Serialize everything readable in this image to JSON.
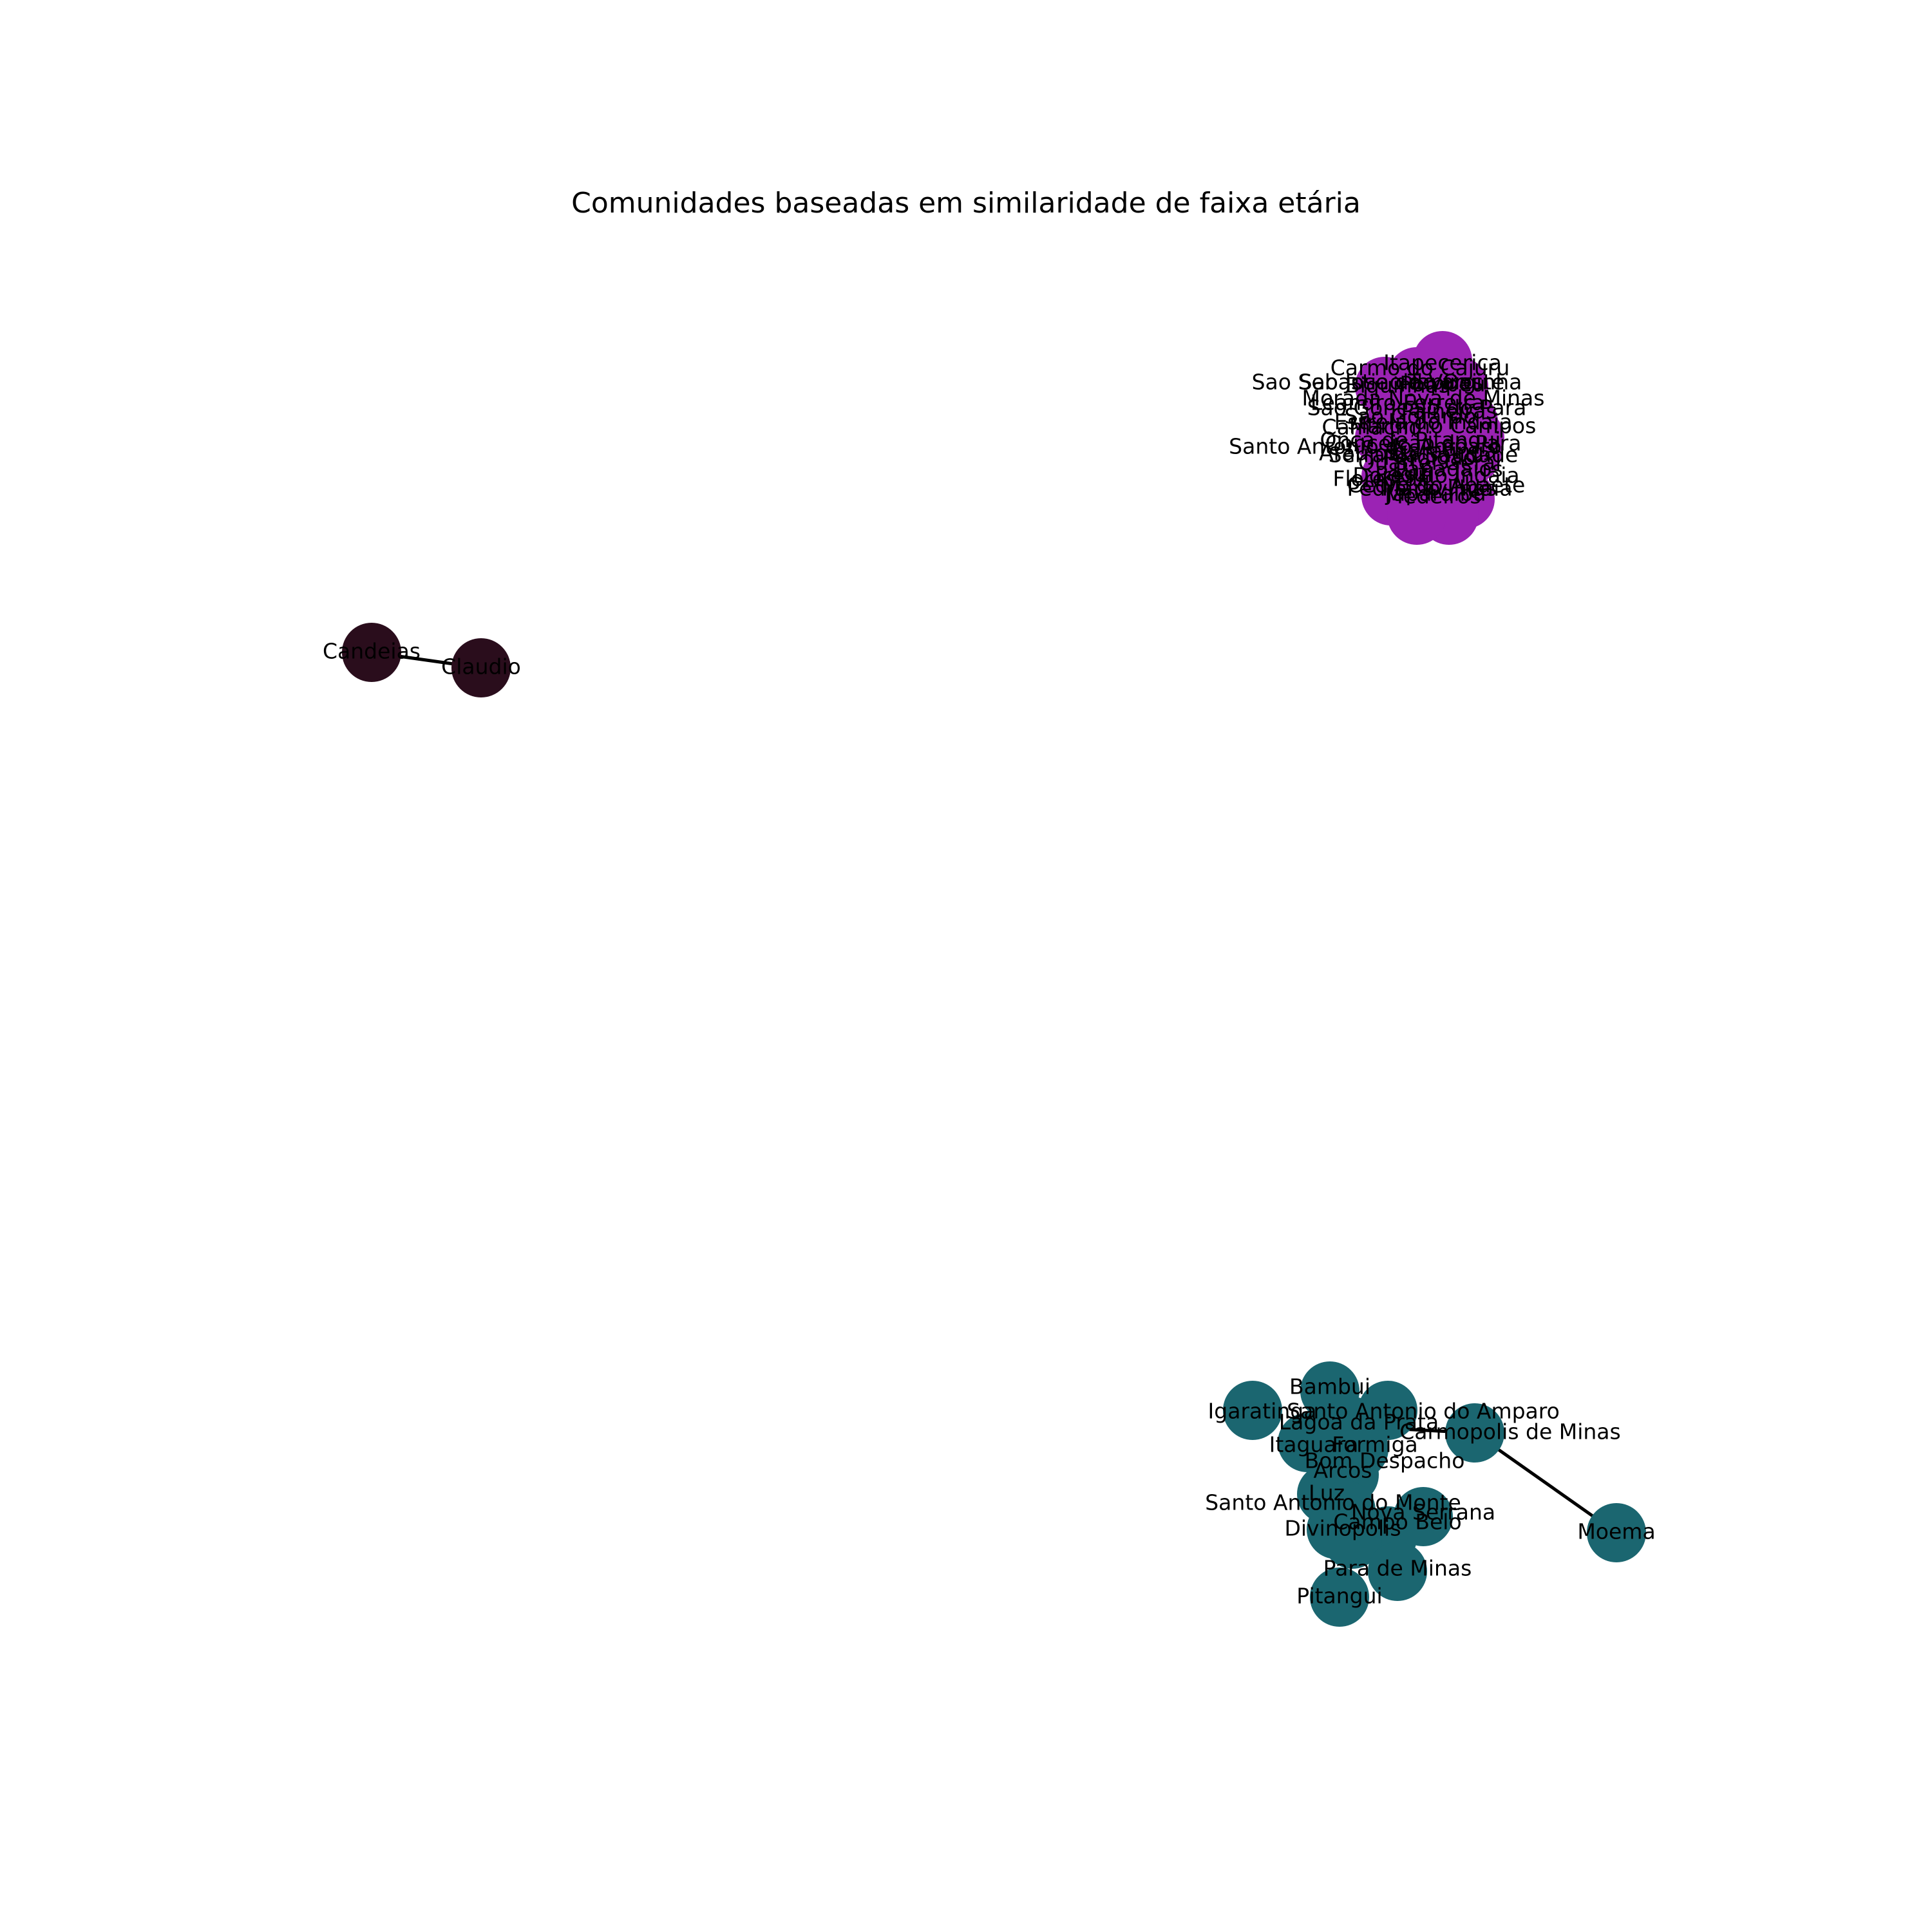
{
  "title": "Comunidades baseadas em similaridade de faixa etária",
  "colors": {
    "community_1": "#9b23b4",
    "community_2": "#2a0d1c",
    "community_3": "#1b6670",
    "edge": "#000000"
  },
  "nodes": {
    "community_1": [
      "Itapecerica",
      "Carmo do Cajuru",
      "Sao Sebastiao do Oeste",
      "Sao Jose da Varginha",
      "Pompeu",
      "Leandro Ferreira",
      "Sao Gonçalo do Para",
      "Sao Gotardo",
      "Estrela do Indaia",
      "Martinho Campos",
      "Camacho",
      "Onça de Pitangui",
      "Conceição do Para",
      "Santo Antonio do Amparo",
      "Igaratinga",
      "Perdigao",
      "Araujos",
      "Luz",
      "Papagaios",
      "Pequi",
      "Dores do Indaia",
      "Florestal",
      "Cedro do Abaete",
      "Maravilhas",
      "Pedra do Indaia",
      "Japaraiba",
      "Medeiros",
      "Tapirai",
      "Serra da Saudade",
      "Quartel Geral",
      "Morada Nova de Minas",
      "Biquinhas",
      "Paineiras"
    ],
    "community_2": [
      "Candeias",
      "Claudio"
    ],
    "community_3": [
      "Bambui",
      "Igaratinga",
      "Santo Antonio do Amparo",
      "Lagoa da Prata",
      "Carmopolis de Minas",
      "Itaguara",
      "Formiga",
      "Bom Despacho",
      "Arcos",
      "Luz",
      "Santo Antonio do Monte",
      "Nova Serrana",
      "Campo Belo",
      "Divinopolis",
      "Para de Minas",
      "Pitangui",
      "Moema"
    ]
  },
  "edges": [
    [
      "Candeias",
      "Claudio"
    ],
    [
      "Carmopolis de Minas",
      "Moema"
    ],
    [
      "Lagoa da Prata",
      "Carmopolis de Minas"
    ]
  ]
}
